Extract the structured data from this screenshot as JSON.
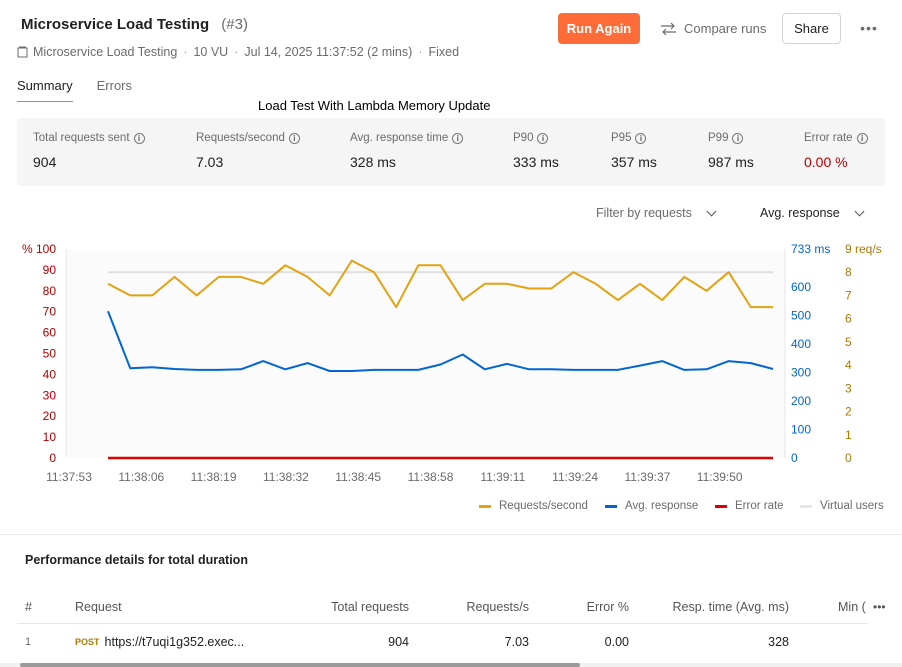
{
  "header": {
    "title": "Microservice Load Testing",
    "run_id": "(#3)",
    "collection": "Microservice Load Testing",
    "virtual_users": "10 VU",
    "date": "Jul 14, 2025 11:37:52 (2 mins)",
    "load_profile": "Fixed",
    "run_again_label": "Run Again",
    "compare_label": "Compare runs",
    "share_label": "Share",
    "more_label": "•••"
  },
  "tabs": [
    {
      "label": "Summary",
      "active": true
    },
    {
      "label": "Errors",
      "active": false
    }
  ],
  "annotation": "Load Test With Lambda Memory Update",
  "stats": [
    {
      "label": "Total requests sent",
      "value": "904"
    },
    {
      "label": "Requests/second",
      "value": "7.03"
    },
    {
      "label": "Avg. response time",
      "value": "328 ms"
    },
    {
      "label": "P90",
      "value": "333 ms"
    },
    {
      "label": "P95",
      "value": "357 ms"
    },
    {
      "label": "P99",
      "value": "987 ms"
    },
    {
      "label": "Error rate",
      "value": "0.00 %"
    }
  ],
  "filters": {
    "filter_label": "Filter by requests",
    "metric_label": "Avg. response"
  },
  "chart_data": {
    "type": "line",
    "x_ticks": [
      "11:37:53",
      "11:38:06",
      "11:38:19",
      "11:38:32",
      "11:38:45",
      "11:38:58",
      "11:39:11",
      "11:39:24",
      "11:39:37",
      "11:39:50"
    ],
    "left_axis": {
      "unit_label": "%",
      "ticks": [
        "100",
        "90",
        "80",
        "70",
        "60",
        "50",
        "40",
        "30",
        "20",
        "10",
        "0"
      ],
      "top_label": "% 100",
      "color": "#b30000"
    },
    "mid_axis": {
      "ticks": [
        "733 ms",
        "600",
        "500",
        "400",
        "300",
        "200",
        "100",
        "0"
      ],
      "color": "#0265d2",
      "ylim": [
        0,
        733
      ]
    },
    "right_axis": {
      "ticks": [
        "9 req/s",
        "8",
        "7",
        "6",
        "5",
        "4",
        "3",
        "2",
        "1",
        "0"
      ],
      "color": "#ad7a03",
      "ylim": [
        0,
        9
      ]
    },
    "virtual_users_level": 8,
    "series": [
      {
        "name": "Requests/second",
        "color": "#e2a211",
        "values": [
          7.5,
          7.0,
          7.0,
          7.8,
          7.0,
          7.8,
          7.8,
          7.5,
          8.3,
          7.8,
          7.0,
          8.5,
          8.0,
          6.5,
          8.3,
          8.3,
          6.8,
          7.5,
          7.5,
          7.3,
          7.3,
          8.0,
          7.5,
          6.8,
          7.5,
          6.8,
          7.8,
          7.2,
          8.0,
          6.5,
          6.5
        ]
      },
      {
        "name": "Avg. response",
        "color": "#0265d2",
        "values": [
          515,
          315,
          318,
          312,
          309,
          309,
          311,
          340,
          311,
          333,
          305,
          305,
          309,
          309,
          309,
          328,
          363,
          311,
          330,
          311,
          311,
          309,
          309,
          309,
          324,
          340,
          309,
          311,
          340,
          333,
          312
        ]
      },
      {
        "name": "Error rate",
        "color": "#e00000",
        "values": [
          0,
          0,
          0,
          0,
          0,
          0,
          0,
          0,
          0,
          0,
          0,
          0,
          0,
          0,
          0,
          0,
          0,
          0,
          0,
          0,
          0,
          0,
          0,
          0,
          0,
          0,
          0,
          0,
          0,
          0,
          0
        ]
      },
      {
        "name": "Virtual users",
        "color": "#e6e6e6",
        "values": [
          10,
          10,
          10,
          10,
          10,
          10,
          10,
          10,
          10,
          10,
          10,
          10,
          10,
          10,
          10,
          10,
          10,
          10,
          10,
          10,
          10,
          10,
          10,
          10,
          10,
          10,
          10,
          10,
          10,
          10,
          10
        ]
      }
    ]
  },
  "legend": [
    "Requests/second",
    "Avg. response",
    "Error rate",
    "Virtual users"
  ],
  "performance": {
    "title": "Performance details for total duration",
    "columns": [
      "#",
      "Request",
      "Total requests",
      "Requests/s",
      "Error %",
      "Resp. time (Avg. ms)",
      "Min ("
    ],
    "rows": [
      {
        "index": "1",
        "method": "POST",
        "url": "https://t7uqi1g352.exec...",
        "total": "904",
        "rps": "7.03",
        "error": "0.00",
        "resp": "328"
      }
    ]
  }
}
